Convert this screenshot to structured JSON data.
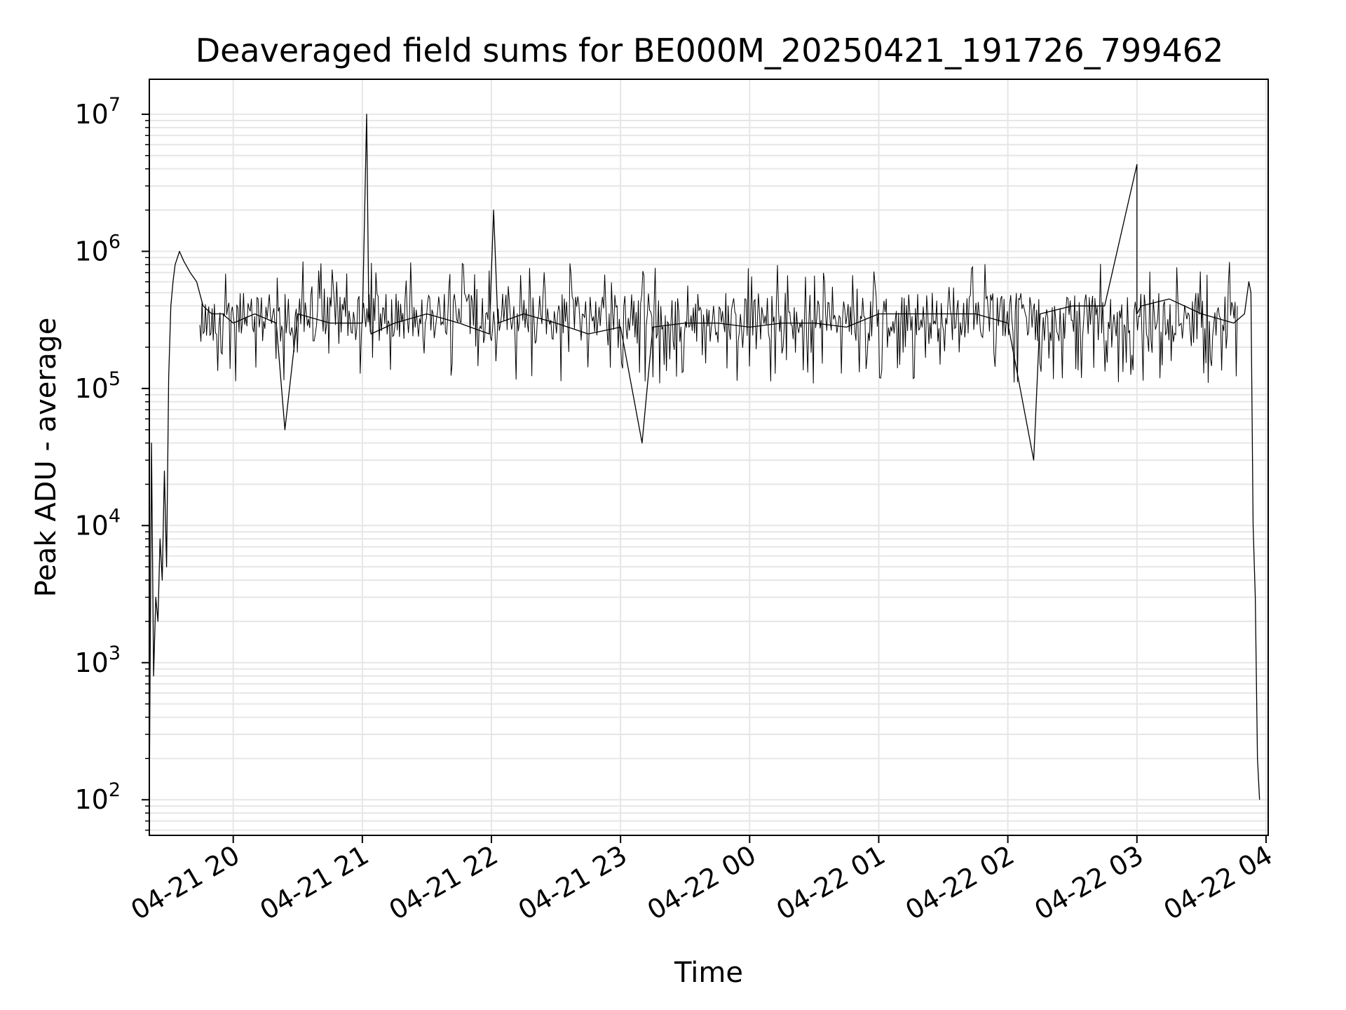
{
  "chart_data": {
    "type": "line",
    "title": "Deaveraged field sums for BE000M_20250421_191726_799462",
    "xlabel": "Time",
    "ylabel": "Peak ADU - average",
    "yscale": "log",
    "ylim": [
      55,
      18000000
    ],
    "xlim": [
      "2025-04-21 19:21",
      "2025-04-22 04:01"
    ],
    "x_ticks": [
      {
        "value": "2025-04-21 20:00",
        "label": "04-21 20"
      },
      {
        "value": "2025-04-21 21:00",
        "label": "04-21 21"
      },
      {
        "value": "2025-04-21 22:00",
        "label": "04-21 22"
      },
      {
        "value": "2025-04-21 23:00",
        "label": "04-21 23"
      },
      {
        "value": "2025-04-22 00:00",
        "label": "04-22 00"
      },
      {
        "value": "2025-04-22 01:00",
        "label": "04-22 01"
      },
      {
        "value": "2025-04-22 02:00",
        "label": "04-22 02"
      },
      {
        "value": "2025-04-22 03:00",
        "label": "04-22 03"
      },
      {
        "value": "2025-04-22 04:00",
        "label": "04-22 04"
      }
    ],
    "y_ticks": [
      {
        "value": 100,
        "base": "10",
        "exp": "2"
      },
      {
        "value": 1000,
        "base": "10",
        "exp": "3"
      },
      {
        "value": 10000,
        "base": "10",
        "exp": "4"
      },
      {
        "value": 100000,
        "base": "10",
        "exp": "5"
      },
      {
        "value": 1000000,
        "base": "10",
        "exp": "6"
      },
      {
        "value": 10000000,
        "base": "10",
        "exp": "7"
      }
    ],
    "grid": true,
    "line_color": "#000000",
    "grid_color": "#e6e6e6",
    "series": [
      {
        "x": [
          "2025-04-21 19:21",
          "2025-04-21 19:22",
          "2025-04-21 19:23",
          "2025-04-21 19:24",
          "2025-04-21 19:25",
          "2025-04-21 19:26",
          "2025-04-21 19:27",
          "2025-04-21 19:28",
          "2025-04-21 19:29",
          "2025-04-21 19:30",
          "2025-04-21 19:31",
          "2025-04-21 19:32",
          "2025-04-21 19:33",
          "2025-04-21 19:35",
          "2025-04-21 19:37",
          "2025-04-21 19:40",
          "2025-04-21 19:43",
          "2025-04-21 19:46",
          "2025-04-21 19:50",
          "2025-04-21 19:55",
          "2025-04-21 20:00",
          "2025-04-21 20:10",
          "2025-04-21 20:20",
          "2025-04-21 20:24",
          "2025-04-21 20:30",
          "2025-04-21 20:45",
          "2025-04-21 21:00",
          "2025-04-21 21:02",
          "2025-04-21 21:03",
          "2025-04-21 21:04",
          "2025-04-21 21:15",
          "2025-04-21 21:30",
          "2025-04-21 21:45",
          "2025-04-21 21:59",
          "2025-04-21 22:01",
          "2025-04-21 22:03",
          "2025-04-21 22:15",
          "2025-04-21 22:30",
          "2025-04-21 22:45",
          "2025-04-21 23:00",
          "2025-04-21 23:10",
          "2025-04-21 23:15",
          "2025-04-21 23:30",
          "2025-04-21 23:45",
          "2025-04-22 00:00",
          "2025-04-22 00:15",
          "2025-04-22 00:30",
          "2025-04-22 00:45",
          "2025-04-22 01:00",
          "2025-04-22 01:15",
          "2025-04-22 01:30",
          "2025-04-22 01:45",
          "2025-04-22 02:00",
          "2025-04-22 02:12",
          "2025-04-22 02:15",
          "2025-04-22 02:30",
          "2025-04-22 02:45",
          "2025-04-22 03:00",
          "2025-04-22 03:00",
          "2025-04-22 03:02",
          "2025-04-22 03:15",
          "2025-04-22 03:30",
          "2025-04-22 03:45",
          "2025-04-22 03:50",
          "2025-04-22 03:52",
          "2025-04-22 03:53",
          "2025-04-22 03:54",
          "2025-04-22 03:55",
          "2025-04-22 03:56",
          "2025-04-22 03:57"
        ],
        "y": [
          100,
          40000,
          800,
          3000,
          2000,
          8000,
          4000,
          25000,
          5000,
          120000,
          400000,
          600000,
          800000,
          1000000,
          850000,
          700000,
          600000,
          400000,
          350000,
          350000,
          300000,
          350000,
          300000,
          50000,
          350000,
          300000,
          300000,
          10000000,
          350000,
          250000,
          300000,
          350000,
          300000,
          250000,
          2000000,
          300000,
          350000,
          300000,
          250000,
          280000,
          40000,
          280000,
          300000,
          300000,
          280000,
          300000,
          300000,
          280000,
          350000,
          350000,
          350000,
          350000,
          300000,
          30000,
          350000,
          400000,
          400000,
          4300000,
          350000,
          400000,
          450000,
          350000,
          300000,
          350000,
          600000,
          500000,
          10000,
          3000,
          200,
          100
        ]
      }
    ]
  }
}
